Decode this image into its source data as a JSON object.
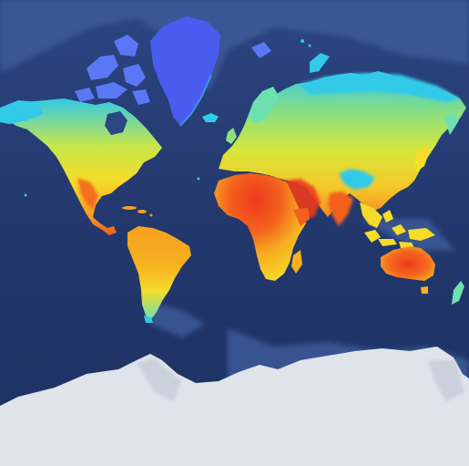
{
  "map": {
    "projection": "mercator",
    "basemap": "ocean-bathymetry",
    "overlay": "land-surface-temperature",
    "colors": {
      "ocean_deep": "#1b2d5e",
      "ocean_mid": "#27407a",
      "ocean_shelf": "#4a69a6",
      "ice": "#dfe3ea",
      "ice_shadow": "#b9c1cf",
      "greenland": "#4a5cf0",
      "coldest": "#5a78f5",
      "cold": "#33c9e8",
      "cool": "#6ee0b0",
      "mild": "#c8e64a",
      "warm": "#f5dc2a",
      "hot": "#f6a020",
      "hottest": "#ee3a1e"
    }
  }
}
